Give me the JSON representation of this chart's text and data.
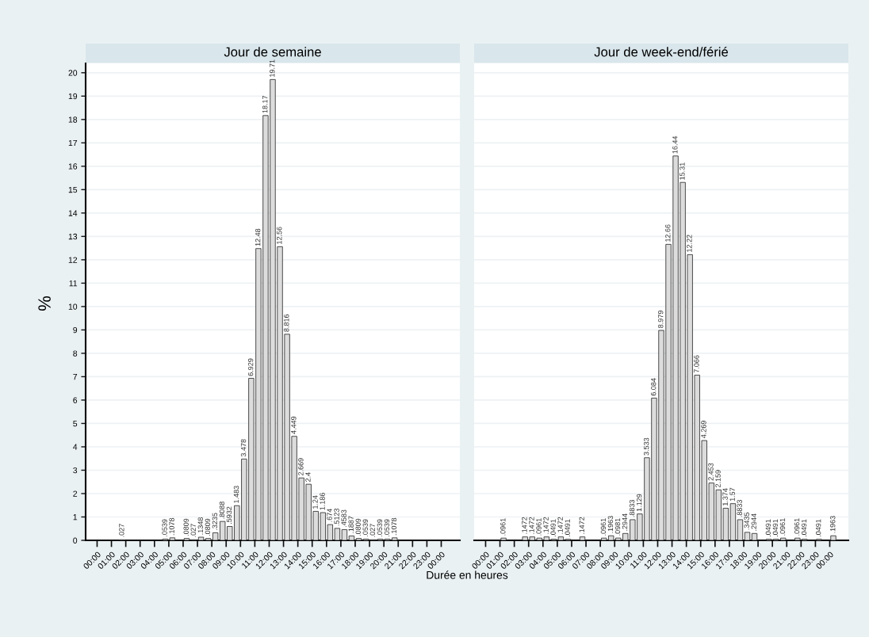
{
  "chart_data": [
    {
      "type": "histogram",
      "title": "Jour de semaine",
      "xlabel": "Durée en heures",
      "ylabel": "%",
      "color": "#dcdcdc",
      "grid": "y",
      "bins": [
        0,
        0.5,
        1,
        1.5,
        2,
        2.5,
        3,
        3.5,
        4,
        4.5,
        5,
        5.5,
        6,
        6.5,
        7,
        7.5,
        8,
        8.5,
        9,
        9.5,
        10,
        10.5,
        11,
        11.5,
        12,
        12.5,
        13,
        13.5,
        14,
        14.5,
        15,
        15.5,
        16,
        16.5,
        17,
        17.5,
        18,
        18.5,
        19,
        19.5,
        20,
        20.5,
        21,
        21.5,
        22,
        22.5,
        23,
        23.5,
        24,
        24.5
      ],
      "values": [
        0,
        0,
        0,
        0.027,
        0,
        0,
        0,
        0,
        0,
        0.0539,
        0.1078,
        0,
        0.0809,
        0.027,
        0.1348,
        0.0809,
        0.3235,
        0.8088,
        0.5932,
        1.483,
        3.478,
        6.929,
        12.48,
        18.17,
        19.71,
        12.56,
        8.816,
        4.449,
        2.669,
        2.4,
        1.24,
        1.186,
        0.674,
        0.5123,
        0.4583,
        0.1887,
        0.0809,
        0.0539,
        0.027,
        0.0539,
        0.0539,
        0.1078,
        0,
        0,
        0,
        0,
        0,
        0,
        0
      ],
      "value_labels": [
        null,
        null,
        null,
        ".027",
        null,
        null,
        null,
        null,
        null,
        ".0539",
        ".1078",
        null,
        ".0809",
        ".027",
        ".1348",
        ".0809",
        ".3235",
        ".8088",
        ".5932",
        "1.483",
        "3.478",
        "6.929",
        "12.48",
        "18.17",
        "19.71",
        "12.56",
        "8.816",
        "4.449",
        "2.669",
        "2.4",
        "1.24",
        "1.186",
        ".674",
        ".5123",
        ".4583",
        ".1887",
        ".0809",
        ".0539",
        ".027",
        ".0539",
        ".0539",
        ".1078",
        null,
        null,
        null,
        null,
        null,
        null,
        null
      ],
      "xlim": [
        -0.8,
        25.3
      ],
      "ylim": [
        0,
        20.4
      ],
      "xticks": [
        {
          "value": 0,
          "label": "00:00"
        },
        {
          "value": 1,
          "label": "01:00"
        },
        {
          "value": 2,
          "label": "02:00"
        },
        {
          "value": 3,
          "label": "03:00"
        },
        {
          "value": 4,
          "label": "04:00"
        },
        {
          "value": 5,
          "label": "05:00"
        },
        {
          "value": 6,
          "label": "06:00"
        },
        {
          "value": 7,
          "label": "07:00"
        },
        {
          "value": 8,
          "label": "08:00"
        },
        {
          "value": 9,
          "label": "09:00"
        },
        {
          "value": 10,
          "label": "10:00"
        },
        {
          "value": 11,
          "label": "11:00"
        },
        {
          "value": 12,
          "label": "12:00"
        },
        {
          "value": 13,
          "label": "13:00"
        },
        {
          "value": 14,
          "label": "14:00"
        },
        {
          "value": 15,
          "label": "15:00"
        },
        {
          "value": 16,
          "label": "16:00"
        },
        {
          "value": 17,
          "label": "17:00"
        },
        {
          "value": 18,
          "label": "18:00"
        },
        {
          "value": 19,
          "label": "19:00"
        },
        {
          "value": 20,
          "label": "20:00"
        },
        {
          "value": 21,
          "label": "21:00"
        },
        {
          "value": 22,
          "label": "22:00"
        },
        {
          "value": 23,
          "label": "23:00"
        },
        {
          "value": 24,
          "label": "00:00"
        }
      ],
      "yticks": [
        0,
        1,
        2,
        3,
        4,
        5,
        6,
        7,
        8,
        9,
        10,
        11,
        12,
        13,
        14,
        15,
        16,
        17,
        18,
        19,
        20
      ]
    },
    {
      "type": "histogram",
      "title": "Jour de week-end/férié",
      "color": "#dcdcdc",
      "grid": "y",
      "tick_labels": "x",
      "bins": [
        0,
        0.5,
        1,
        1.5,
        2,
        2.5,
        3,
        3.5,
        4,
        4.5,
        5,
        5.5,
        6,
        6.5,
        7,
        7.5,
        8,
        8.5,
        9,
        9.5,
        10,
        10.5,
        11,
        11.5,
        12,
        12.5,
        13,
        13.5,
        14,
        14.5,
        15,
        15.5,
        16,
        16.5,
        17,
        17.5,
        18,
        18.5,
        19,
        19.5,
        20,
        20.5,
        21,
        21.5,
        22,
        22.5,
        23,
        23.5,
        24,
        24.5
      ],
      "values": [
        0,
        0,
        0.0961,
        0,
        0,
        0.1472,
        0.1472,
        0.0961,
        0.1472,
        0.0491,
        0.1472,
        0.0491,
        0,
        0.1472,
        0,
        0,
        0.0961,
        0.1963,
        0.0981,
        0.2944,
        0.8833,
        1.129,
        3.533,
        6.084,
        8.979,
        12.66,
        16.44,
        15.31,
        12.22,
        7.066,
        4.269,
        2.453,
        2.159,
        1.374,
        1.57,
        0.8833,
        0.3435,
        0.2944,
        0,
        0.0491,
        0.0491,
        0.0961,
        0,
        0.0961,
        0.0491,
        0,
        0.0491,
        0,
        0.1963
      ],
      "value_labels": [
        null,
        null,
        ".0961",
        null,
        null,
        ".1472",
        ".1472",
        ".0961",
        ".1472",
        ".0491",
        ".1472",
        ".0491",
        null,
        ".1472",
        null,
        null,
        ".0961",
        ".1963",
        ".0981",
        ".2944",
        ".8833",
        "1.129",
        "3.533",
        "6.084",
        "8.979",
        "12.66",
        "16.44",
        "15.31",
        "12.22",
        "7.066",
        "4.269",
        "2.453",
        "2.159",
        "1.374",
        "1.57",
        ".8833",
        ".3435",
        ".2944",
        null,
        ".0491",
        ".0491",
        ".0961",
        null,
        ".0961",
        ".0491",
        null,
        ".0491",
        null,
        ".1963"
      ],
      "xlim": [
        -0.8,
        25.3
      ],
      "ylim": [
        0,
        20.4
      ],
      "xticks": [
        {
          "value": 0,
          "label": "00:00"
        },
        {
          "value": 1,
          "label": "01:00"
        },
        {
          "value": 2,
          "label": "02:00"
        },
        {
          "value": 3,
          "label": "03:00"
        },
        {
          "value": 4,
          "label": "04:00"
        },
        {
          "value": 5,
          "label": "05:00"
        },
        {
          "value": 6,
          "label": "06:00"
        },
        {
          "value": 7,
          "label": "07:00"
        },
        {
          "value": 8,
          "label": "08:00"
        },
        {
          "value": 9,
          "label": "09:00"
        },
        {
          "value": 10,
          "label": "10:00"
        },
        {
          "value": 11,
          "label": "11:00"
        },
        {
          "value": 12,
          "label": "12:00"
        },
        {
          "value": 13,
          "label": "13:00"
        },
        {
          "value": 14,
          "label": "14:00"
        },
        {
          "value": 15,
          "label": "15:00"
        },
        {
          "value": 16,
          "label": "16:00"
        },
        {
          "value": 17,
          "label": "17:00"
        },
        {
          "value": 18,
          "label": "18:00"
        },
        {
          "value": 19,
          "label": "19:00"
        },
        {
          "value": 20,
          "label": "20:00"
        },
        {
          "value": 21,
          "label": "21:00"
        },
        {
          "value": 22,
          "label": "22:00"
        },
        {
          "value": 23,
          "label": "23:00"
        },
        {
          "value": 24,
          "label": "00:00"
        }
      ],
      "yticks": [
        0,
        1,
        2,
        3,
        4,
        5,
        6,
        7,
        8,
        9,
        10,
        11,
        12,
        13,
        14,
        15,
        16,
        17,
        18,
        19,
        20
      ]
    }
  ]
}
